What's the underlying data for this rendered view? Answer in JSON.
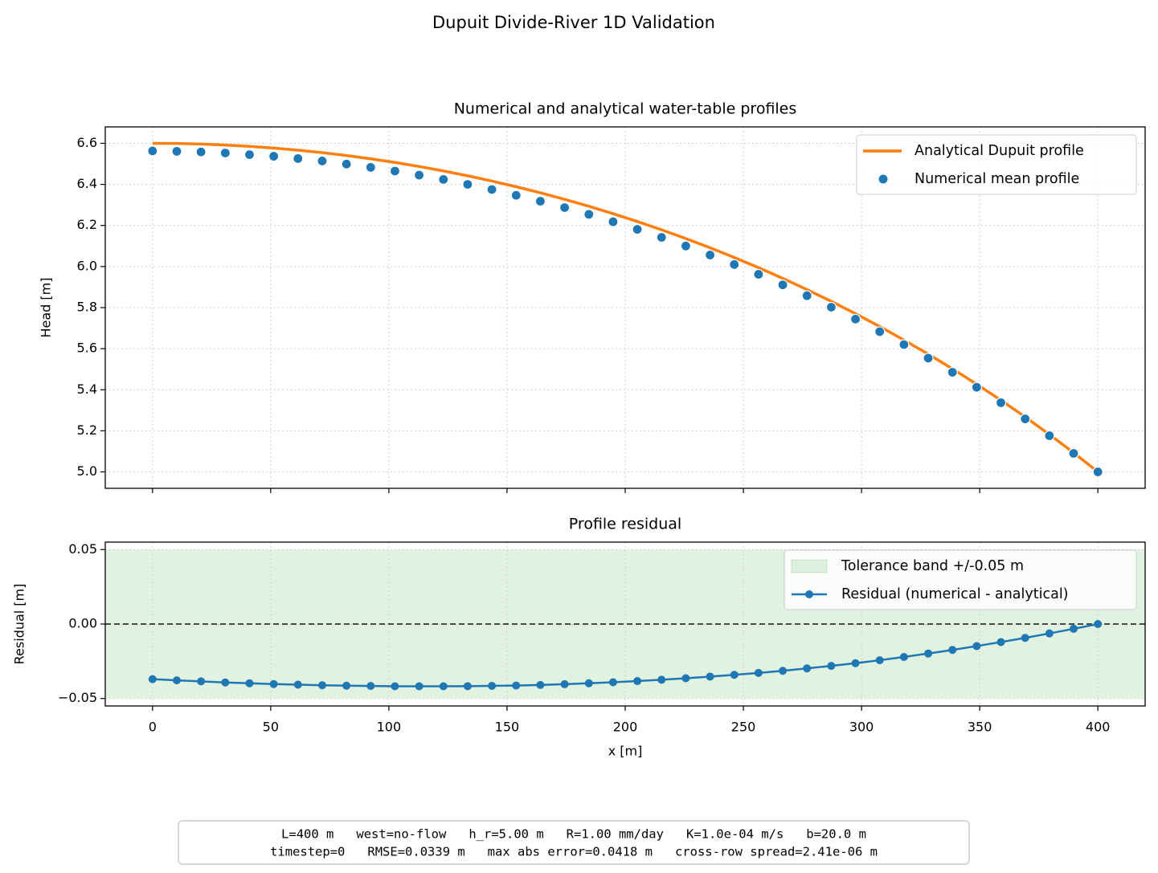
{
  "title": "Dupuit Divide-River 1D Validation",
  "annotation_lines": [
    "L=400 m   west=no-flow   h_r=5.00 m   R=1.00 mm/day   K=1.0e-04 m/s   b=20.0 m",
    "timestep=0   RMSE=0.0339 m   max abs error=0.0418 m   cross-row spread=2.41e-06 m"
  ],
  "chart_data": [
    {
      "type": "line",
      "title": "Numerical and analytical water-table profiles",
      "y_label": "Head [m]",
      "x": [
        0,
        10.26,
        20.51,
        30.77,
        41.03,
        51.28,
        61.54,
        71.79,
        82.05,
        92.31,
        102.56,
        112.82,
        123.08,
        133.33,
        143.59,
        153.85,
        164.1,
        174.36,
        184.62,
        194.87,
        205.13,
        215.38,
        225.64,
        235.9,
        246.15,
        256.41,
        266.67,
        276.92,
        287.18,
        297.44,
        307.69,
        317.95,
        328.21,
        338.46,
        348.72,
        358.97,
        369.23,
        379.49,
        389.74,
        400
      ],
      "series": [
        {
          "name": "Analytical Dupuit profile",
          "kind": "line",
          "color": "#ff7f0e",
          "values": [
            6.6,
            6.5991,
            6.5963,
            6.5917,
            6.5852,
            6.5769,
            6.5667,
            6.5546,
            6.5406,
            6.5247,
            6.5069,
            6.4872,
            6.4655,
            6.4419,
            6.4162,
            6.3886,
            6.3589,
            6.3272,
            6.2934,
            6.2574,
            6.2192,
            6.1789,
            6.1363,
            6.0914,
            6.0441,
            5.9945,
            5.9423,
            5.8877,
            5.8304,
            5.7704,
            5.7077,
            5.6421,
            5.5736,
            5.502,
            5.4271,
            5.349,
            5.2674,
            5.1822,
            5.0931,
            5.0
          ]
        },
        {
          "name": "Numerical mean profile",
          "kind": "scatter",
          "color": "#1f77b4",
          "values": [
            6.563,
            6.561,
            6.558,
            6.553,
            6.545,
            6.537,
            6.526,
            6.514,
            6.499,
            6.483,
            6.465,
            6.445,
            6.424,
            6.4,
            6.375,
            6.347,
            6.318,
            6.287,
            6.254,
            6.218,
            6.181,
            6.142,
            6.1,
            6.056,
            6.01,
            5.962,
            5.911,
            5.858,
            5.802,
            5.744,
            5.683,
            5.62,
            5.554,
            5.485,
            5.412,
            5.337,
            5.258,
            5.176,
            5.09,
            5.0
          ]
        }
      ],
      "xlim": [
        -20,
        420
      ],
      "xticks": [
        0,
        50,
        100,
        150,
        200,
        250,
        300,
        350,
        400
      ],
      "ylim": [
        4.92,
        6.68
      ],
      "yticks": [
        {
          "value": 5.0,
          "label": "5.0"
        },
        5.2,
        5.4,
        5.6,
        5.8,
        {
          "value": 6.0,
          "label": "6.0"
        },
        6.2,
        6.4,
        6.6
      ],
      "grid": true,
      "legend": "upper-right"
    },
    {
      "type": "line",
      "title": "Profile residual",
      "x_label": "x [m]",
      "y_label": "Residual [m]",
      "x": [
        0,
        10.26,
        20.51,
        30.77,
        41.03,
        51.28,
        61.54,
        71.79,
        82.05,
        92.31,
        102.56,
        112.82,
        123.08,
        133.33,
        143.59,
        153.85,
        164.1,
        174.36,
        184.62,
        194.87,
        205.13,
        215.38,
        225.64,
        235.9,
        246.15,
        256.41,
        266.67,
        276.92,
        287.18,
        297.44,
        307.69,
        317.95,
        328.21,
        338.46,
        348.72,
        358.97,
        369.23,
        379.49,
        389.74,
        400
      ],
      "series": [
        {
          "name": "Tolerance band +/-0.05 m",
          "kind": "band",
          "color": "#2ca02c",
          "band": [
            -0.05,
            0.05
          ]
        },
        {
          "name": "Residual (numerical - analytical)",
          "kind": "line-marker",
          "color": "#1f77b4",
          "values": [
            -0.037,
            -0.0378,
            -0.0385,
            -0.0392,
            -0.0398,
            -0.0403,
            -0.0407,
            -0.0411,
            -0.0414,
            -0.0416,
            -0.0418,
            -0.0418,
            -0.0418,
            -0.0417,
            -0.0415,
            -0.0413,
            -0.0409,
            -0.0404,
            -0.0398,
            -0.0391,
            -0.0383,
            -0.0374,
            -0.0364,
            -0.0353,
            -0.0341,
            -0.0328,
            -0.0314,
            -0.0298,
            -0.0281,
            -0.0263,
            -0.0243,
            -0.0221,
            -0.0198,
            -0.0174,
            -0.0148,
            -0.0121,
            -0.0093,
            -0.0063,
            -0.0032,
            0.0
          ]
        }
      ],
      "reference_line": 0,
      "xlim": [
        -20,
        420
      ],
      "xticks": [
        0,
        50,
        100,
        150,
        200,
        250,
        300,
        350,
        400
      ],
      "ylim": [
        -0.055,
        0.055
      ],
      "yticks": [
        {
          "value": -0.05,
          "label": "−0.05"
        },
        {
          "value": 0,
          "label": "0.00"
        },
        0.05
      ],
      "grid": true,
      "legend": "upper-right"
    }
  ]
}
